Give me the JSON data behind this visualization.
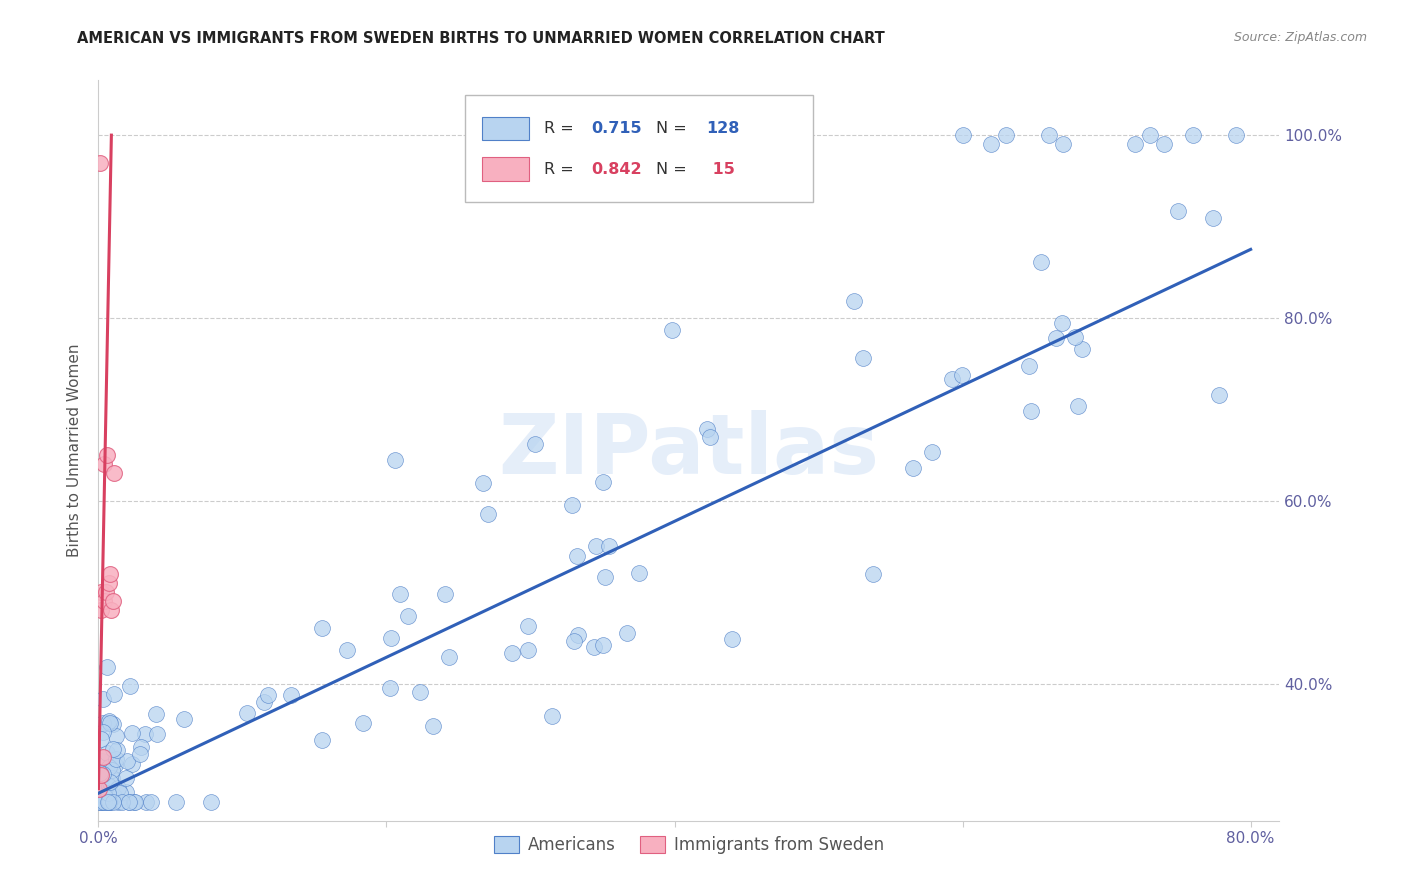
{
  "title": "AMERICAN VS IMMIGRANTS FROM SWEDEN BIRTHS TO UNMARRIED WOMEN CORRELATION CHART",
  "source": "Source: ZipAtlas.com",
  "ylabel": "Births to Unmarried Women",
  "watermark": "ZIPatlas",
  "xlim": [
    0.0,
    0.82
  ],
  "ylim": [
    0.25,
    1.06
  ],
  "x_ticks": [
    0.0,
    0.2,
    0.4,
    0.6,
    0.8
  ],
  "x_tick_labels": [
    "0.0%",
    "",
    "",
    "",
    "80.0%"
  ],
  "right_y_ticks": [
    0.4,
    0.6,
    0.8,
    1.0
  ],
  "right_y_tick_labels": [
    "40.0%",
    "60.0%",
    "80.0%",
    "100.0%"
  ],
  "blue_color": "#b8d4f0",
  "blue_edge_color": "#5080c8",
  "blue_line_color": "#3060b8",
  "pink_color": "#f8b0c0",
  "pink_edge_color": "#e06080",
  "pink_line_color": "#d84060",
  "legend_americans": "Americans",
  "legend_immigrants": "Immigrants from Sweden",
  "blue_R": "0.715",
  "blue_N": "128",
  "pink_R": "0.842",
  "pink_N": " 15",
  "blue_line_x0": 0.0,
  "blue_line_x1": 0.8,
  "blue_line_y0": 0.28,
  "blue_line_y1": 0.875,
  "pink_line_x0": 0.0,
  "pink_line_x1": 0.009,
  "pink_line_y0": 0.285,
  "pink_line_y1": 1.0,
  "grid_color": "#cccccc",
  "tick_label_color": "#6060a0",
  "title_color": "#222222",
  "source_color": "#888888",
  "ylabel_color": "#555555"
}
